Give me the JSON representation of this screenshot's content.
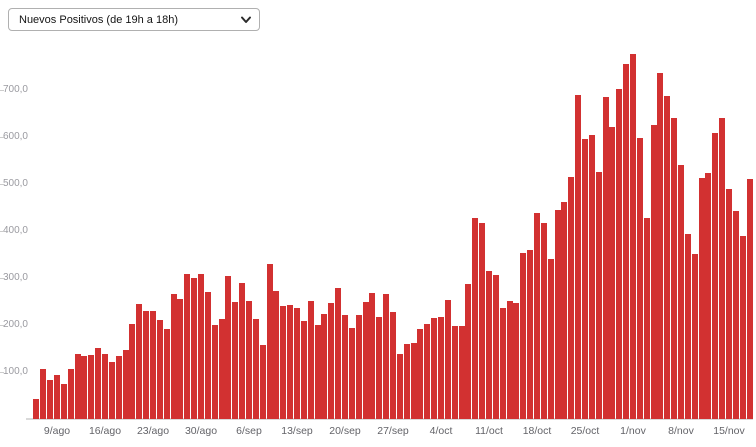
{
  "controls": {
    "metric_select": {
      "selected": "Nuevos Positivos (de 19h a 18h)"
    }
  },
  "chart_data": {
    "type": "bar",
    "title": "",
    "xlabel": "",
    "ylabel": "",
    "ylim": [
      0,
      800
    ],
    "grid": false,
    "legend": false,
    "bar_color": "#d23131",
    "baseline_color": "#d9d9d9",
    "y_axis": {
      "tick_labels": [
        "100,0",
        "200,0",
        "300,0",
        "400,0",
        "500,0",
        "600,0",
        "700,0"
      ],
      "tick_step": 100
    },
    "x_axis": {
      "tick_labels": [
        {
          "label": "9/ago",
          "index": 3
        },
        {
          "label": "16/ago",
          "index": 10
        },
        {
          "label": "23/ago",
          "index": 17
        },
        {
          "label": "30/ago",
          "index": 24
        },
        {
          "label": "6/sep",
          "index": 31
        },
        {
          "label": "13/sep",
          "index": 38
        },
        {
          "label": "20/sep",
          "index": 45
        },
        {
          "label": "27/sep",
          "index": 52
        },
        {
          "label": "4/oct",
          "index": 59
        },
        {
          "label": "11/oct",
          "index": 66
        },
        {
          "label": "18/oct",
          "index": 73
        },
        {
          "label": "25/oct",
          "index": 80
        },
        {
          "label": "1/nov",
          "index": 87
        },
        {
          "label": "8/nov",
          "index": 94
        },
        {
          "label": "15/nov",
          "index": 101
        }
      ]
    },
    "x": [
      "6/ago",
      "7/ago",
      "8/ago",
      "9/ago",
      "10/ago",
      "11/ago",
      "12/ago",
      "13/ago",
      "14/ago",
      "15/ago",
      "16/ago",
      "17/ago",
      "18/ago",
      "19/ago",
      "20/ago",
      "21/ago",
      "22/ago",
      "23/ago",
      "24/ago",
      "25/ago",
      "26/ago",
      "27/ago",
      "28/ago",
      "29/ago",
      "30/ago",
      "31/ago",
      "1/sep",
      "2/sep",
      "3/sep",
      "4/sep",
      "5/sep",
      "6/sep",
      "7/sep",
      "8/sep",
      "9/sep",
      "10/sep",
      "11/sep",
      "12/sep",
      "13/sep",
      "14/sep",
      "15/sep",
      "16/sep",
      "17/sep",
      "18/sep",
      "19/sep",
      "20/sep",
      "21/sep",
      "22/sep",
      "23/sep",
      "24/sep",
      "25/sep",
      "26/sep",
      "27/sep",
      "28/sep",
      "29/sep",
      "30/sep",
      "1/oct",
      "2/oct",
      "3/oct",
      "4/oct",
      "5/oct",
      "6/oct",
      "7/oct",
      "8/oct",
      "9/oct",
      "10/oct",
      "11/oct",
      "12/oct",
      "13/oct",
      "14/oct",
      "15/oct",
      "16/oct",
      "17/oct",
      "18/oct",
      "19/oct",
      "20/oct",
      "21/oct",
      "22/oct",
      "23/oct",
      "24/oct",
      "25/oct",
      "26/oct",
      "27/oct",
      "28/oct",
      "29/oct",
      "30/oct",
      "31/oct",
      "1/nov",
      "2/nov",
      "3/nov",
      "4/nov",
      "5/nov",
      "6/nov",
      "7/nov",
      "8/nov",
      "9/nov",
      "10/nov",
      "11/nov",
      "12/nov",
      "13/nov",
      "14/nov",
      "15/nov",
      "16/nov",
      "17/nov",
      "18/nov"
    ],
    "values": [
      42,
      107,
      82,
      94,
      75,
      106,
      139,
      133,
      136,
      150,
      138,
      121,
      133,
      147,
      203,
      245,
      230,
      230,
      210,
      191,
      267,
      255,
      308,
      299,
      308,
      270,
      201,
      212,
      304,
      249,
      289,
      251,
      212,
      158,
      330,
      272,
      240,
      242,
      236,
      208,
      250,
      199,
      224,
      247,
      279,
      221,
      194,
      221,
      249,
      269,
      218,
      265,
      228,
      138,
      160,
      162,
      191,
      203,
      215,
      216,
      253,
      198,
      198,
      287,
      428,
      417,
      314,
      306,
      237,
      252,
      247,
      353,
      360,
      438,
      416,
      341,
      444,
      462,
      515,
      689,
      596,
      605,
      526,
      685,
      621,
      703,
      756,
      777,
      598,
      428,
      626,
      737,
      687,
      640,
      541,
      394,
      350,
      513,
      523,
      609,
      640,
      489,
      443,
      389,
      510
    ]
  }
}
